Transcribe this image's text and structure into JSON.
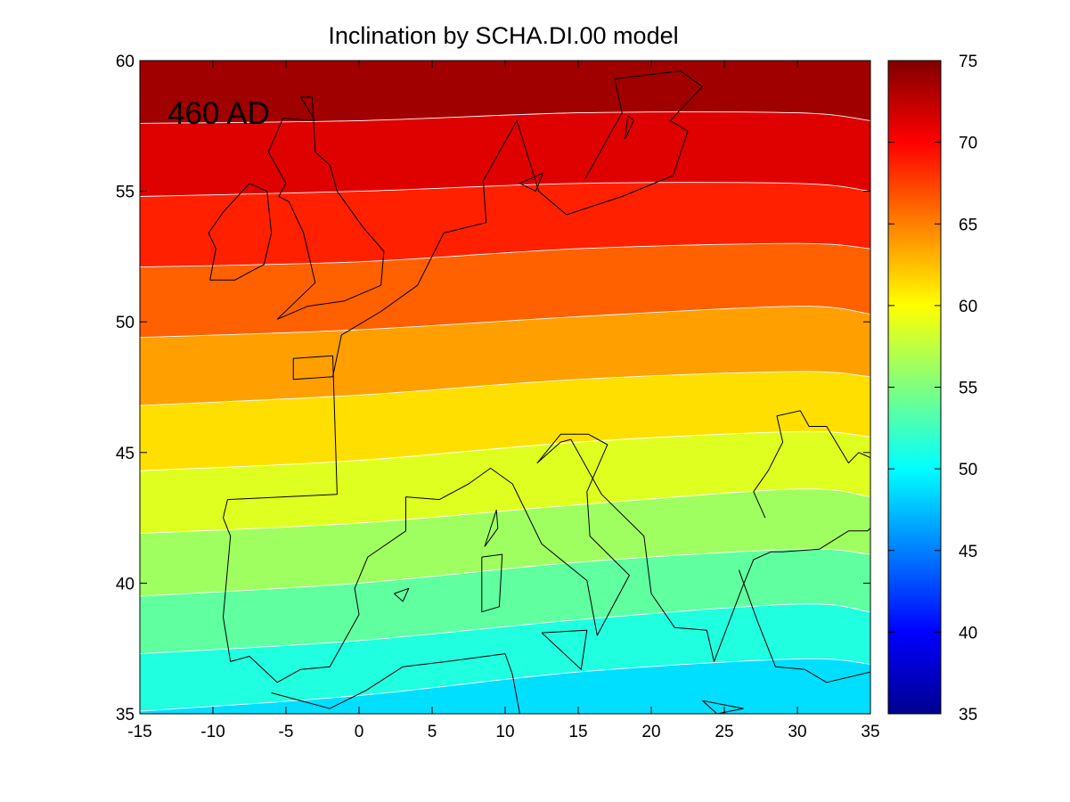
{
  "chart_data": {
    "type": "heatmap",
    "subtype": "filled-contour-map",
    "title": "Inclination by SCHA.DI.00 model",
    "annotation": "460 AD",
    "xlabel": "",
    "ylabel": "",
    "xlim": [
      -15,
      35
    ],
    "ylim": [
      35,
      60
    ],
    "x_ticks": [
      -15,
      -10,
      -5,
      0,
      5,
      10,
      15,
      20,
      25,
      30,
      35
    ],
    "y_ticks": [
      35,
      40,
      45,
      50,
      55,
      60
    ],
    "colorbar": {
      "range": [
        35,
        75
      ],
      "ticks": [
        35,
        40,
        45,
        50,
        55,
        60,
        65,
        70,
        75
      ],
      "colormap": "jet"
    },
    "contour_levels": [
      50,
      52.5,
      55,
      57.5,
      60,
      62.5,
      65,
      67.5,
      70,
      72.5
    ],
    "contours": [
      {
        "level": 72.5,
        "lon": [
          -15,
          0,
          15,
          30,
          35
        ],
        "lat": [
          57.6,
          57.7,
          58.0,
          58.0,
          57.7
        ]
      },
      {
        "level": 70.0,
        "lon": [
          -15,
          0,
          15,
          30,
          35
        ],
        "lat": [
          54.8,
          55.0,
          55.3,
          55.3,
          55.0
        ]
      },
      {
        "level": 67.5,
        "lon": [
          -15,
          0,
          15,
          30,
          35
        ],
        "lat": [
          52.1,
          52.3,
          52.8,
          53.0,
          52.8
        ]
      },
      {
        "level": 65.0,
        "lon": [
          -15,
          0,
          15,
          30,
          35
        ],
        "lat": [
          49.4,
          49.7,
          50.2,
          50.6,
          50.3
        ]
      },
      {
        "level": 62.5,
        "lon": [
          -15,
          0,
          15,
          30,
          35
        ],
        "lat": [
          46.8,
          47.2,
          47.8,
          48.1,
          47.9
        ]
      },
      {
        "level": 60.0,
        "lon": [
          -15,
          0,
          15,
          30,
          35
        ],
        "lat": [
          44.3,
          44.7,
          45.4,
          45.8,
          45.6
        ]
      },
      {
        "level": 57.5,
        "lon": [
          -15,
          0,
          15,
          30,
          35
        ],
        "lat": [
          41.9,
          42.3,
          43.0,
          43.6,
          43.3
        ]
      },
      {
        "level": 55.0,
        "lon": [
          -15,
          0,
          15,
          30,
          35
        ],
        "lat": [
          39.5,
          40.0,
          40.8,
          41.3,
          41.1
        ]
      },
      {
        "level": 52.5,
        "lon": [
          -15,
          0,
          15,
          30,
          35
        ],
        "lat": [
          37.3,
          37.8,
          38.6,
          39.2,
          38.9
        ]
      },
      {
        "level": 50.0,
        "lon": [
          -15,
          0,
          15,
          30,
          35
        ],
        "lat": [
          35.1,
          35.7,
          36.6,
          37.1,
          36.9
        ]
      }
    ],
    "bottom_level": 47.5,
    "coastlines": [
      {
        "name": "ireland",
        "lon": [
          -10.2,
          -8.5,
          -6.5,
          -6.0,
          -6.3,
          -7.5,
          -9.3,
          -10.3,
          -9.8,
          -10.2
        ],
        "lat": [
          51.6,
          51.6,
          52.2,
          53.4,
          55.0,
          55.3,
          54.2,
          53.4,
          52.8,
          51.6
        ]
      },
      {
        "name": "great-britain",
        "lon": [
          -5.6,
          -3.5,
          -1.0,
          1.5,
          1.7,
          0.3,
          -1.5,
          -2.0,
          -3.0,
          -3.2,
          -4.0,
          -3.0,
          -5.2,
          -6.2,
          -5.0,
          -5.5,
          -4.8,
          -3.8,
          -3.0,
          -5.6
        ],
        "lat": [
          50.1,
          50.6,
          50.8,
          51.4,
          52.7,
          53.6,
          55.0,
          56.0,
          56.5,
          58.6,
          58.6,
          57.7,
          57.8,
          56.5,
          55.3,
          54.8,
          54.6,
          53.4,
          51.5,
          50.1
        ]
      },
      {
        "name": "continental-europe",
        "lon": [
          -1.8,
          -1.2,
          1.5,
          4.0,
          5.8,
          8.7,
          8.5,
          10.8,
          12.3,
          14.2,
          18.0,
          21.5,
          22.5,
          21.3,
          23.5,
          22.0,
          17.5,
          18.0,
          16.0,
          15.5
        ],
        "lat": [
          47.9,
          49.5,
          50.4,
          51.4,
          53.4,
          53.8,
          55.4,
          57.7,
          55.0,
          54.1,
          54.8,
          55.6,
          57.3,
          57.7,
          59.0,
          59.6,
          59.3,
          58.0,
          56.0,
          55.5
        ]
      },
      {
        "name": "iberia-france-italy-balkans",
        "lon": [
          -1.8,
          -4.5,
          -4.5,
          -1.8,
          -1.5,
          -9.0,
          -9.3,
          -8.8,
          -9.3,
          -8.8,
          -7.5,
          -5.6,
          -4.0,
          -2.0,
          0.0,
          -0.3,
          0.6,
          3.2,
          3.2,
          5.5,
          7.5,
          9.0,
          10.5,
          12.5,
          15.6,
          16.3,
          18.5,
          15.8,
          15.6,
          17.0,
          15.7,
          13.8,
          12.2,
          13.8,
          14.5,
          16.6,
          19.5,
          20.0,
          21.6,
          23.8,
          24.3,
          26.2,
          27.0,
          28.2,
          29.0,
          31.5,
          33.5,
          34.8,
          35.0
        ],
        "lat": [
          47.9,
          47.8,
          48.6,
          48.7,
          43.4,
          43.2,
          42.5,
          41.8,
          38.7,
          37.0,
          37.2,
          36.2,
          36.7,
          36.8,
          38.8,
          39.8,
          41.0,
          42.0,
          43.3,
          43.2,
          43.8,
          44.4,
          43.8,
          41.5,
          40.1,
          38.0,
          40.3,
          41.8,
          43.5,
          45.3,
          45.7,
          45.7,
          44.6,
          45.4,
          45.5,
          43.4,
          41.8,
          39.6,
          38.3,
          38.2,
          37.0,
          39.8,
          40.9,
          41.2,
          41.2,
          41.3,
          42.0,
          42.0,
          42.1
        ]
      },
      {
        "name": "black-sea-coast",
        "lon": [
          27.8,
          27.0,
          28.0,
          29.0,
          28.6,
          30.2,
          30.8,
          32.0,
          33.5,
          34.2,
          35.0
        ],
        "lat": [
          42.5,
          43.5,
          44.3,
          45.4,
          46.4,
          46.6,
          46.0,
          46.0,
          44.6,
          45.0,
          44.8
        ]
      },
      {
        "name": "sicily",
        "lon": [
          12.5,
          15.6,
          15.2,
          12.5
        ],
        "lat": [
          38.1,
          38.2,
          36.7,
          38.1
        ]
      },
      {
        "name": "sardinia",
        "lon": [
          8.4,
          9.8,
          9.6,
          8.4,
          8.4
        ],
        "lat": [
          41.0,
          41.1,
          39.1,
          38.9,
          41.0
        ]
      },
      {
        "name": "corsica",
        "lon": [
          8.6,
          9.4,
          9.5,
          8.6
        ],
        "lat": [
          41.4,
          42.8,
          42.1,
          41.4
        ]
      },
      {
        "name": "mallorca",
        "lon": [
          2.4,
          3.4,
          3.0,
          2.4
        ],
        "lat": [
          39.6,
          39.8,
          39.3,
          39.6
        ]
      },
      {
        "name": "crete",
        "lon": [
          23.5,
          26.3,
          24.5,
          23.5
        ],
        "lat": [
          35.5,
          35.2,
          35.0,
          35.5
        ]
      },
      {
        "name": "sjaelland",
        "lon": [
          11.0,
          12.6,
          12.1,
          11.0
        ],
        "lat": [
          55.3,
          55.7,
          55.0,
          55.3
        ]
      },
      {
        "name": "gotland",
        "lon": [
          18.2,
          18.8,
          18.4,
          18.2
        ],
        "lat": [
          57.0,
          57.7,
          57.9,
          57.0
        ]
      },
      {
        "name": "north-africa",
        "lon": [
          -6.0,
          -2.0,
          0.5,
          3.0,
          6.0,
          10.0,
          10.5,
          11.0
        ],
        "lat": [
          35.8,
          35.2,
          35.9,
          36.8,
          37.0,
          37.3,
          36.5,
          35.0
        ]
      },
      {
        "name": "anatolia",
        "lon": [
          26.0,
          27.3,
          28.5,
          30.5,
          32.0,
          35.0
        ],
        "lat": [
          40.5,
          38.5,
          36.8,
          36.7,
          36.2,
          36.6
        ]
      }
    ]
  }
}
